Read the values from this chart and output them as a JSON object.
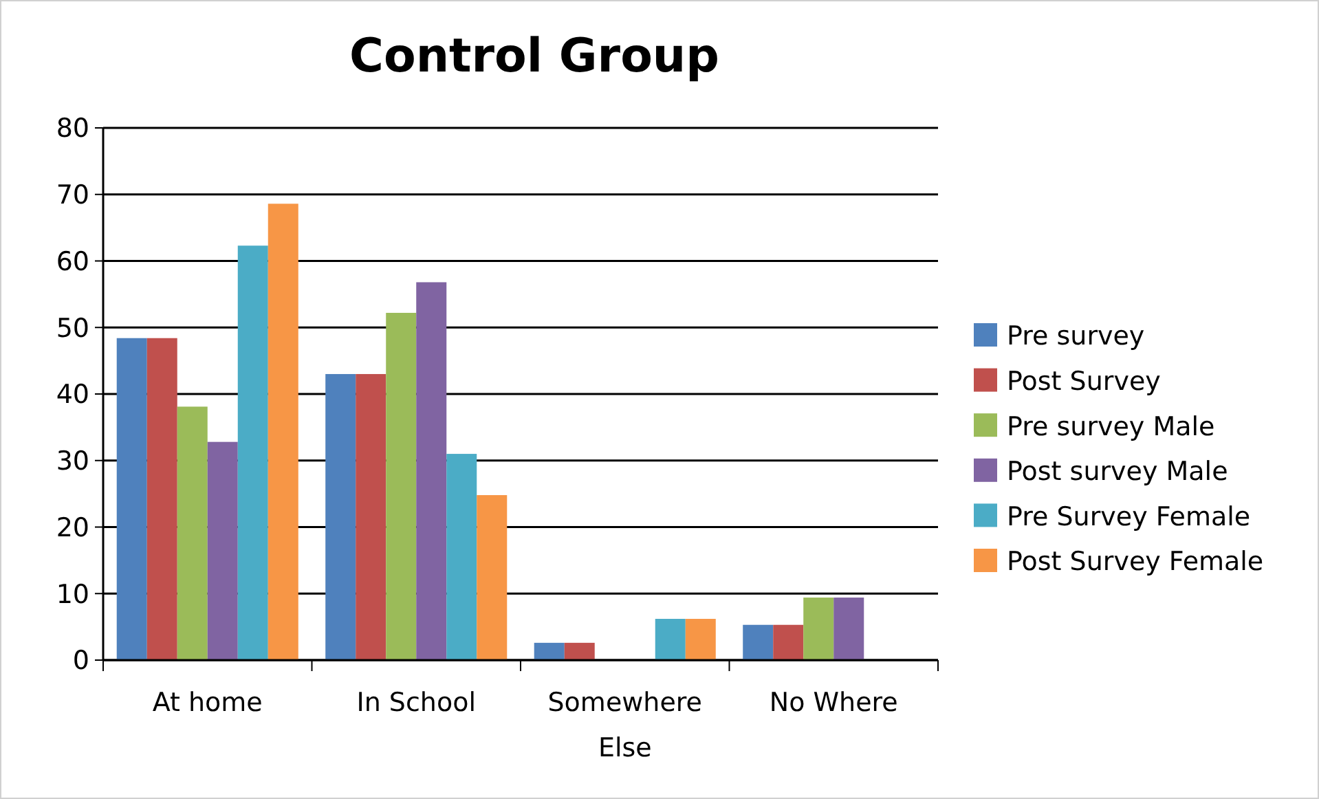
{
  "chart_data": {
    "type": "bar",
    "title": "Control Group",
    "categories": [
      "At home",
      "In School",
      "Somewhere Else",
      "No Where"
    ],
    "series": [
      {
        "name": "Pre survey",
        "color": "#4f81bd",
        "values": [
          48.4,
          43.0,
          2.6,
          5.3
        ]
      },
      {
        "name": "Post Survey",
        "color": "#c0504d",
        "values": [
          48.4,
          43.0,
          2.6,
          5.3
        ]
      },
      {
        "name": "Pre survey Male",
        "color": "#9bbb59",
        "values": [
          38.1,
          52.2,
          0,
          9.4
        ]
      },
      {
        "name": "Post survey Male",
        "color": "#8064a2",
        "values": [
          32.8,
          56.8,
          0,
          9.4
        ]
      },
      {
        "name": "Pre Survey Female",
        "color": "#4bacc6",
        "values": [
          62.3,
          31.0,
          6.2,
          0
        ]
      },
      {
        "name": "Post Survey Female",
        "color": "#f79646",
        "values": [
          68.6,
          24.8,
          6.2,
          0
        ]
      }
    ],
    "ylim": [
      0,
      80
    ],
    "yticks": [
      0,
      10,
      20,
      30,
      40,
      50,
      60,
      70,
      80
    ],
    "grid": "y",
    "legend": "right"
  }
}
